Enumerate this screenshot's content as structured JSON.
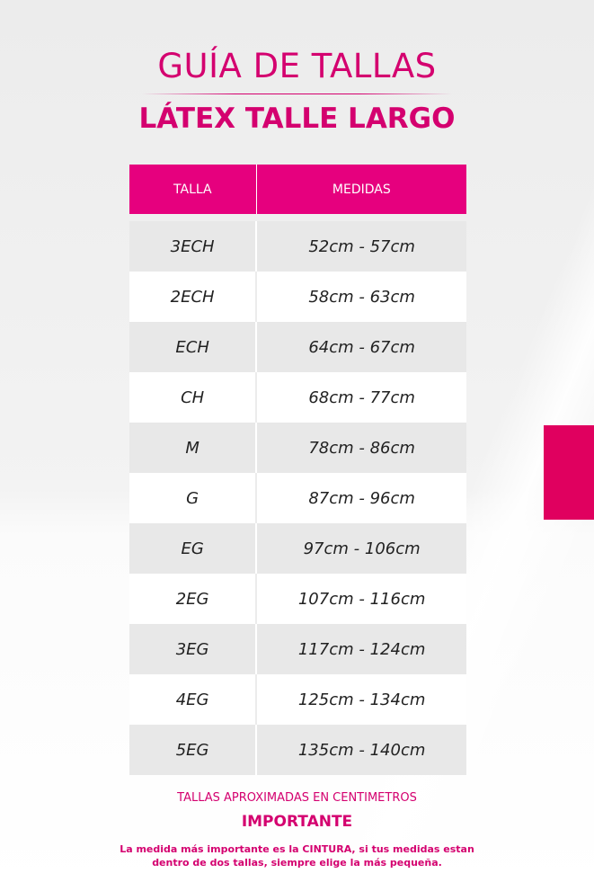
{
  "title": "GUÍA DE TALLAS",
  "subtitle": "LÁTEX TALLE LARGO",
  "colors": {
    "accent": "#e6007e",
    "text_pink": "#d4006f"
  },
  "table": {
    "headers": [
      "TALLA",
      "MEDIDAS"
    ],
    "rows": [
      {
        "talla": "3ECH",
        "medidas": "52cm - 57cm"
      },
      {
        "talla": "2ECH",
        "medidas": "58cm - 63cm"
      },
      {
        "talla": "ECH",
        "medidas": "64cm - 67cm"
      },
      {
        "talla": "CH",
        "medidas": "68cm - 77cm"
      },
      {
        "talla": "M",
        "medidas": "78cm - 86cm"
      },
      {
        "talla": "G",
        "medidas": "87cm - 96cm"
      },
      {
        "talla": "EG",
        "medidas": "97cm - 106cm"
      },
      {
        "talla": "2EG",
        "medidas": "107cm - 116cm"
      },
      {
        "talla": "3EG",
        "medidas": "117cm - 124cm"
      },
      {
        "talla": "4EG",
        "medidas": "125cm - 134cm"
      },
      {
        "talla": "5EG",
        "medidas": "135cm - 140cm"
      }
    ]
  },
  "footer": {
    "note": "TALLAS APROXIMADAS EN CENTIMETROS",
    "important": "IMPORTANTE",
    "line1": "La medida más importante es la CINTURA, si tus medidas estan",
    "line2": "dentro de dos tallas, siempre elige la más pequeña."
  }
}
